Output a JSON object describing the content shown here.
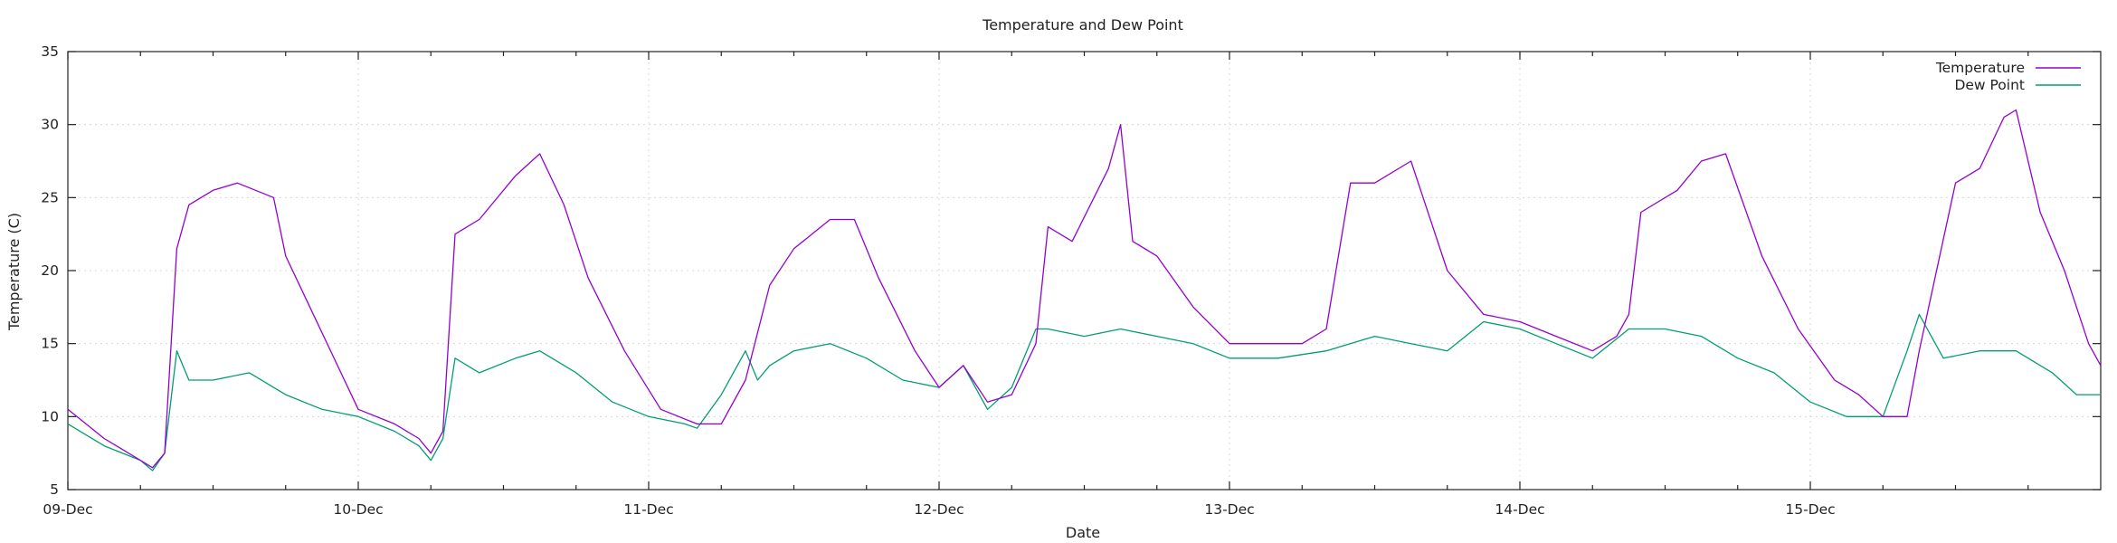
{
  "chart_data": {
    "type": "line",
    "title": "Temperature and Dew Point",
    "xlabel": "Date",
    "ylabel": "Temperature (C)",
    "xlim": [
      "2023-12-09T00:00",
      "2023-12-16T00:00"
    ],
    "ylim": [
      5,
      35
    ],
    "grid": true,
    "legend_position": "top-right",
    "xticks": [
      {
        "value": "2023-12-09T00:00",
        "label": "09-Dec"
      },
      {
        "value": "2023-12-10T00:00",
        "label": "10-Dec"
      },
      {
        "value": "2023-12-11T00:00",
        "label": "11-Dec"
      },
      {
        "value": "2023-12-12T00:00",
        "label": "12-Dec"
      },
      {
        "value": "2023-12-13T00:00",
        "label": "13-Dec"
      },
      {
        "value": "2023-12-14T00:00",
        "label": "14-Dec"
      },
      {
        "value": "2023-12-15T00:00",
        "label": "15-Dec"
      }
    ],
    "yticks": [
      5,
      10,
      15,
      20,
      25,
      30,
      35
    ],
    "series": [
      {
        "name": "Temperature",
        "color": "#9400d3",
        "x": [
          "2023-12-09T00:00",
          "2023-12-09T03:00",
          "2023-12-09T06:00",
          "2023-12-09T07:00",
          "2023-12-09T08:00",
          "2023-12-09T09:00",
          "2023-12-09T10:00",
          "2023-12-09T12:00",
          "2023-12-09T14:00",
          "2023-12-09T17:00",
          "2023-12-09T18:00",
          "2023-12-09T20:00",
          "2023-12-10T00:00",
          "2023-12-10T03:00",
          "2023-12-10T05:00",
          "2023-12-10T06:00",
          "2023-12-10T07:00",
          "2023-12-10T08:00",
          "2023-12-10T10:00",
          "2023-12-10T13:00",
          "2023-12-10T15:00",
          "2023-12-10T17:00",
          "2023-12-10T19:00",
          "2023-12-10T22:00",
          "2023-12-11T01:00",
          "2023-12-11T04:00",
          "2023-12-11T06:00",
          "2023-12-11T08:00",
          "2023-12-11T10:00",
          "2023-12-11T12:00",
          "2023-12-11T15:00",
          "2023-12-11T17:00",
          "2023-12-11T19:00",
          "2023-12-11T22:00",
          "2023-12-12T00:00",
          "2023-12-12T02:00",
          "2023-12-12T04:00",
          "2023-12-12T06:00",
          "2023-12-12T08:00",
          "2023-12-12T09:00",
          "2023-12-12T11:00",
          "2023-12-12T14:00",
          "2023-12-12T15:00",
          "2023-12-12T16:00",
          "2023-12-12T18:00",
          "2023-12-12T21:00",
          "2023-12-13T00:00",
          "2023-12-13T03:00",
          "2023-12-13T06:00",
          "2023-12-13T08:00",
          "2023-12-13T10:00",
          "2023-12-13T12:00",
          "2023-12-13T15:00",
          "2023-12-13T16:00",
          "2023-12-13T18:00",
          "2023-12-13T21:00",
          "2023-12-14T00:00",
          "2023-12-14T03:00",
          "2023-12-14T06:00",
          "2023-12-14T08:00",
          "2023-12-14T09:00",
          "2023-12-14T10:00",
          "2023-12-14T13:00",
          "2023-12-14T15:00",
          "2023-12-14T17:00",
          "2023-12-14T20:00",
          "2023-12-14T23:00",
          "2023-12-15T02:00",
          "2023-12-15T04:00",
          "2023-12-15T06:00",
          "2023-12-15T08:00",
          "2023-12-15T09:00",
          "2023-12-15T12:00",
          "2023-12-15T14:00",
          "2023-12-15T16:00",
          "2023-12-15T17:00",
          "2023-12-15T19:00",
          "2023-12-15T21:00",
          "2023-12-15T23:00",
          "2023-12-16T00:00"
        ],
        "y": [
          10.5,
          8.5,
          7.0,
          6.5,
          7.5,
          21.5,
          24.5,
          25.5,
          26.0,
          25.0,
          21.0,
          17.5,
          10.5,
          9.5,
          8.5,
          7.5,
          9.0,
          22.5,
          23.5,
          26.5,
          28.0,
          24.5,
          19.5,
          14.5,
          10.5,
          9.5,
          9.5,
          12.5,
          19.0,
          21.5,
          23.5,
          23.5,
          19.5,
          14.5,
          12.0,
          13.5,
          11.0,
          11.5,
          15.0,
          23.0,
          22.0,
          27.0,
          30.0,
          22.0,
          21.0,
          17.5,
          15.0,
          15.0,
          15.0,
          16.0,
          26.0,
          26.0,
          27.5,
          25.0,
          20.0,
          17.0,
          16.5,
          15.5,
          14.5,
          15.5,
          17.0,
          24.0,
          25.5,
          27.5,
          28.0,
          21.0,
          16.0,
          12.5,
          11.5,
          10.0,
          10.0,
          14.5,
          26.0,
          27.0,
          30.5,
          31.0,
          24.0,
          20.0,
          15.0,
          13.5
        ]
      },
      {
        "name": "Dew Point",
        "color": "#009e73",
        "x": [
          "2023-12-09T00:00",
          "2023-12-09T03:00",
          "2023-12-09T06:00",
          "2023-12-09T07:00",
          "2023-12-09T08:00",
          "2023-12-09T09:00",
          "2023-12-09T10:00",
          "2023-12-09T12:00",
          "2023-12-09T15:00",
          "2023-12-09T18:00",
          "2023-12-09T21:00",
          "2023-12-10T00:00",
          "2023-12-10T03:00",
          "2023-12-10T05:00",
          "2023-12-10T06:00",
          "2023-12-10T07:00",
          "2023-12-10T08:00",
          "2023-12-10T10:00",
          "2023-12-10T13:00",
          "2023-12-10T15:00",
          "2023-12-10T18:00",
          "2023-12-10T21:00",
          "2023-12-11T00:00",
          "2023-12-11T03:00",
          "2023-12-11T04:00",
          "2023-12-11T06:00",
          "2023-12-11T08:00",
          "2023-12-11T09:00",
          "2023-12-11T10:00",
          "2023-12-11T12:00",
          "2023-12-11T15:00",
          "2023-12-11T18:00",
          "2023-12-11T21:00",
          "2023-12-12T00:00",
          "2023-12-12T02:00",
          "2023-12-12T04:00",
          "2023-12-12T06:00",
          "2023-12-12T08:00",
          "2023-12-12T09:00",
          "2023-12-12T12:00",
          "2023-12-12T15:00",
          "2023-12-12T18:00",
          "2023-12-12T21:00",
          "2023-12-13T00:00",
          "2023-12-13T04:00",
          "2023-12-13T08:00",
          "2023-12-13T12:00",
          "2023-12-13T15:00",
          "2023-12-13T18:00",
          "2023-12-13T21:00",
          "2023-12-14T00:00",
          "2023-12-14T03:00",
          "2023-12-14T06:00",
          "2023-12-14T09:00",
          "2023-12-14T12:00",
          "2023-12-14T15:00",
          "2023-12-14T18:00",
          "2023-12-14T21:00",
          "2023-12-15T00:00",
          "2023-12-15T03:00",
          "2023-12-15T06:00",
          "2023-12-15T08:00",
          "2023-12-15T09:00",
          "2023-12-15T11:00",
          "2023-12-15T14:00",
          "2023-12-15T17:00",
          "2023-12-15T20:00",
          "2023-12-15T22:00",
          "2023-12-16T00:00"
        ],
        "y": [
          9.5,
          8.0,
          7.0,
          6.3,
          7.5,
          14.5,
          12.5,
          12.5,
          13.0,
          11.5,
          10.5,
          10.0,
          9.0,
          8.0,
          7.0,
          8.5,
          14.0,
          13.0,
          14.0,
          14.5,
          13.0,
          11.0,
          10.0,
          9.5,
          9.2,
          11.5,
          14.5,
          12.5,
          13.5,
          14.5,
          15.0,
          14.0,
          12.5,
          12.0,
          13.5,
          10.5,
          12.0,
          16.0,
          16.0,
          15.5,
          16.0,
          15.5,
          15.0,
          14.0,
          14.0,
          14.5,
          15.5,
          15.0,
          14.5,
          16.5,
          16.0,
          15.0,
          14.0,
          16.0,
          16.0,
          15.5,
          14.0,
          13.0,
          11.0,
          10.0,
          10.0,
          14.5,
          17.0,
          14.0,
          14.5,
          14.5,
          13.0,
          11.5,
          11.5
        ]
      }
    ]
  }
}
